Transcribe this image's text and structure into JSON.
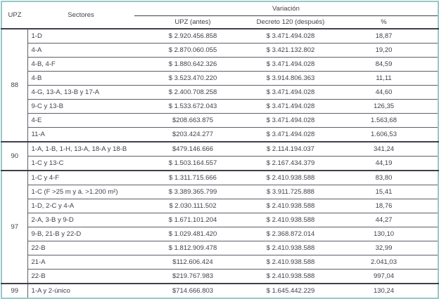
{
  "header": {
    "upz_label": "UPZ",
    "sectores_label": "Sectores",
    "variacion_label": "Variación",
    "sub_columns": [
      "UPZ (antes)",
      "Decreto 120 (después)",
      "%"
    ]
  },
  "colors": {
    "outer_border": "#96c9c9",
    "heavy_line": "#3f3f4b",
    "row_line": "#5e5e68",
    "text": "#3f3f4c",
    "background": "#ffffff"
  },
  "table": {
    "groups": [
      {
        "upz": "88",
        "rows": [
          {
            "sector": "1-D",
            "antes": "$ 2.920.456.858",
            "despues": "$ 3.471.494.028",
            "pct": "18,87"
          },
          {
            "sector": "4-A",
            "antes": "$ 2.870.060.055",
            "despues": "$ 3.421.132.802",
            "pct": "19,20"
          },
          {
            "sector": "4-B, 4-F",
            "antes": "$ 1.880.642.326",
            "despues": "$ 3.471.494.028",
            "pct": "84,59"
          },
          {
            "sector": "4-B",
            "antes": "$ 3.523.470.220",
            "despues": "$ 3.914.806.363",
            "pct": "11,11"
          },
          {
            "sector": "4-G, 13-A, 13-B y 17-A",
            "antes": "$ 2.400.708.258",
            "despues": "$ 3.471.494.028",
            "pct": "44,60"
          },
          {
            "sector": "9-C y 13-B",
            "antes": "$ 1.533.672.043",
            "despues": "$ 3.471.494.028",
            "pct": "126,35"
          },
          {
            "sector": "4-E",
            "antes": "$208.663.875",
            "despues": "$ 3.471.494.028",
            "pct": "1.563,68"
          },
          {
            "sector": "11-A",
            "antes": "$203.424.277",
            "despues": "$ 3.471.494.028",
            "pct": "1.606,53"
          }
        ]
      },
      {
        "upz": "90",
        "rows": [
          {
            "sector": "1-A, 1-B, 1-H, 13-A, 18-A y 18-B",
            "antes": "$479.146.666",
            "despues": "$ 2.114.194.037",
            "pct": "341,24"
          },
          {
            "sector": "1-C y 13-C",
            "antes": "$ 1.503.164.557",
            "despues": "$ 2.167.434.379",
            "pct": "44,19"
          }
        ]
      },
      {
        "upz": "97",
        "rows": [
          {
            "sector": "1-C y 4-F",
            "antes": "$ 1.311.715.666",
            "despues": "$ 2.410.938.588",
            "pct": "83,80"
          },
          {
            "sector": "1-C (F >25 m y á. >1.200 m²)",
            "antes": "$ 3.389.365.799",
            "despues": "$ 3.911.725.888",
            "pct": "15,41"
          },
          {
            "sector": "1-D, 2-C y 4-A",
            "antes": "$ 2.030.111.502",
            "despues": "$ 2.410.938.588",
            "pct": "18,76"
          },
          {
            "sector": "2-A, 3-B y 9-D",
            "antes": "$ 1.671.101.204",
            "despues": "$ 2.410.938.588",
            "pct": "44,27"
          },
          {
            "sector": "9-B, 21-B y 22-D",
            "antes": "$ 1.029.481.420",
            "despues": "$ 2.368.872.014",
            "pct": "130,10"
          },
          {
            "sector": "22-B",
            "antes": "$ 1.812.909.478",
            "despues": "$ 2.410.938.588",
            "pct": "32,99"
          },
          {
            "sector": "21-A",
            "antes": "$112.606.424",
            "despues": "$ 2.410.938.588",
            "pct": "2.041,03"
          },
          {
            "sector": "22-B",
            "antes": "$219.767.983",
            "despues": "$ 2.410.938.588",
            "pct": "997,04"
          }
        ]
      },
      {
        "upz": "99",
        "rows": [
          {
            "sector": "1-A y 2-único",
            "antes": "$714.666.803",
            "despues": "$ 1.645.442.229",
            "pct": "130,24"
          }
        ]
      }
    ]
  }
}
